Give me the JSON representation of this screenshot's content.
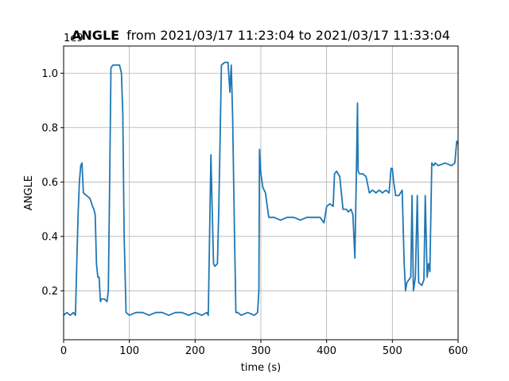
{
  "chart_data": {
    "type": "line",
    "title_bold": "ANGLE",
    "title_rest": "from 2021/03/17 11:23:04 to 2021/03/17 11:33:04",
    "xlabel": "time (s)",
    "ylabel": "ANGLE",
    "y_offset_label": "1e9",
    "xlim": [
      0,
      600
    ],
    "ylim": [
      0.02,
      1.1
    ],
    "x_ticks": [
      0,
      100,
      200,
      300,
      400,
      500,
      600
    ],
    "x_tick_labels": [
      "0",
      "100",
      "200",
      "300",
      "400",
      "500",
      "600"
    ],
    "y_ticks": [
      0.2,
      0.4,
      0.6,
      0.8,
      1.0
    ],
    "y_tick_labels": [
      "0.2",
      "0.4",
      "0.6",
      "0.8",
      "1.0"
    ],
    "grid": true,
    "line_color": "#1f77b4",
    "series": [
      {
        "x": [
          0,
          5,
          10,
          15,
          18,
          20,
          22,
          24,
          26,
          28,
          30,
          35,
          40,
          44,
          46,
          48,
          50,
          52,
          54,
          56,
          58,
          62,
          66,
          68,
          70,
          72,
          75,
          80,
          85,
          88,
          90,
          92,
          95,
          100,
          110,
          120,
          130,
          140,
          150,
          160,
          170,
          180,
          190,
          200,
          210,
          218,
          220,
          222,
          224,
          226,
          228,
          230,
          234,
          236,
          238,
          240,
          245,
          250,
          253,
          255,
          257,
          260,
          262,
          265,
          270,
          280,
          290,
          295,
          297,
          298,
          300,
          303,
          307,
          312,
          320,
          330,
          340,
          350,
          360,
          370,
          380,
          390,
          396,
          400,
          405,
          410,
          412,
          415,
          420,
          425,
          430,
          433,
          437,
          440,
          443,
          445,
          447,
          448,
          450,
          455,
          460,
          465,
          470,
          475,
          480,
          485,
          490,
          495,
          498,
          500,
          502,
          505,
          510,
          515,
          518,
          520,
          522,
          525,
          528,
          530,
          532,
          535,
          538,
          540,
          545,
          548,
          550,
          553,
          555,
          557,
          560,
          563,
          565,
          570,
          580,
          590,
          595,
          598,
          600
        ],
        "y": [
          0.11,
          0.12,
          0.11,
          0.12,
          0.11,
          0.3,
          0.48,
          0.6,
          0.66,
          0.67,
          0.56,
          0.55,
          0.54,
          0.51,
          0.5,
          0.48,
          0.3,
          0.25,
          0.25,
          0.16,
          0.17,
          0.17,
          0.16,
          0.2,
          0.6,
          1.02,
          1.03,
          1.03,
          1.03,
          1.0,
          0.85,
          0.4,
          0.12,
          0.11,
          0.12,
          0.12,
          0.11,
          0.12,
          0.12,
          0.11,
          0.12,
          0.12,
          0.11,
          0.12,
          0.11,
          0.12,
          0.11,
          0.4,
          0.7,
          0.5,
          0.3,
          0.29,
          0.3,
          0.5,
          0.75,
          1.03,
          1.04,
          1.04,
          0.93,
          1.03,
          0.84,
          0.4,
          0.12,
          0.12,
          0.11,
          0.12,
          0.11,
          0.12,
          0.2,
          0.72,
          0.63,
          0.58,
          0.56,
          0.47,
          0.47,
          0.46,
          0.47,
          0.47,
          0.46,
          0.47,
          0.47,
          0.47,
          0.45,
          0.51,
          0.52,
          0.51,
          0.63,
          0.64,
          0.62,
          0.5,
          0.5,
          0.49,
          0.5,
          0.48,
          0.32,
          0.6,
          0.89,
          0.64,
          0.63,
          0.63,
          0.62,
          0.56,
          0.57,
          0.56,
          0.57,
          0.56,
          0.57,
          0.56,
          0.65,
          0.65,
          0.6,
          0.55,
          0.55,
          0.57,
          0.3,
          0.2,
          0.23,
          0.24,
          0.25,
          0.55,
          0.2,
          0.25,
          0.55,
          0.23,
          0.22,
          0.24,
          0.55,
          0.25,
          0.3,
          0.27,
          0.67,
          0.66,
          0.67,
          0.66,
          0.67,
          0.66,
          0.67,
          0.75,
          0.74
        ]
      }
    ]
  }
}
